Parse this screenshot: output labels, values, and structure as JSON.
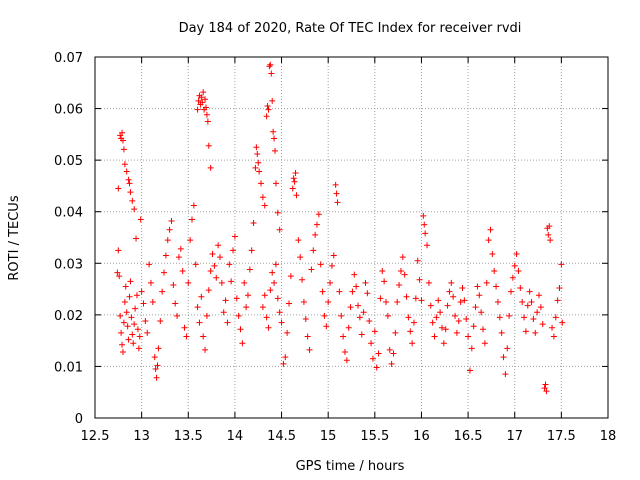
{
  "chart_data": {
    "type": "scatter",
    "title": "Day 184 of 2020, Rate Of TEC Index for receiver rvdi",
    "xlabel": "GPS time / hours",
    "ylabel": "ROTI / TECUs",
    "xlim": [
      12.5,
      18
    ],
    "ylim": [
      0,
      0.07
    ],
    "xticks": [
      "12.5",
      "13",
      "13.5",
      "14",
      "14.5",
      "15",
      "15.5",
      "16",
      "16.5",
      "17",
      "17.5",
      "18"
    ],
    "yticks": [
      "0",
      "0.01",
      "0.02",
      "0.03",
      "0.04",
      "0.05",
      "0.06",
      "0.07"
    ],
    "grid": true,
    "marker": "+",
    "color": "#ff0000",
    "series": [
      {
        "name": "ROTI",
        "points": [
          [
            12.75,
            0.0445
          ],
          [
            12.77,
            0.0548
          ],
          [
            12.78,
            0.0542
          ],
          [
            12.79,
            0.0553
          ],
          [
            12.8,
            0.0538
          ],
          [
            12.81,
            0.0521
          ],
          [
            12.82,
            0.0492
          ],
          [
            12.84,
            0.0478
          ],
          [
            12.86,
            0.0462
          ],
          [
            12.87,
            0.0455
          ],
          [
            12.88,
            0.0438
          ],
          [
            12.9,
            0.0421
          ],
          [
            12.92,
            0.0405
          ],
          [
            12.74,
            0.0282
          ],
          [
            12.75,
            0.0325
          ],
          [
            12.76,
            0.0275
          ],
          [
            12.77,
            0.0198
          ],
          [
            12.78,
            0.0165
          ],
          [
            12.79,
            0.0142
          ],
          [
            12.8,
            0.0128
          ],
          [
            12.81,
            0.0185
          ],
          [
            12.82,
            0.0225
          ],
          [
            12.83,
            0.0255
          ],
          [
            12.84,
            0.0205
          ],
          [
            12.85,
            0.0178
          ],
          [
            12.86,
            0.0152
          ],
          [
            12.87,
            0.0235
          ],
          [
            12.88,
            0.0265
          ],
          [
            12.89,
            0.0195
          ],
          [
            12.9,
            0.0162
          ],
          [
            12.91,
            0.0145
          ],
          [
            12.92,
            0.0182
          ],
          [
            12.93,
            0.0212
          ],
          [
            12.94,
            0.0348
          ],
          [
            12.95,
            0.0238
          ],
          [
            12.96,
            0.0172
          ],
          [
            12.97,
            0.0135
          ],
          [
            12.98,
            0.0158
          ],
          [
            12.99,
            0.0385
          ],
          [
            13.0,
            0.0245
          ],
          [
            13.02,
            0.0222
          ],
          [
            13.04,
            0.0188
          ],
          [
            13.06,
            0.0165
          ],
          [
            13.08,
            0.0298
          ],
          [
            13.1,
            0.0262
          ],
          [
            13.12,
            0.0225
          ],
          [
            13.14,
            0.0118
          ],
          [
            13.15,
            0.0095
          ],
          [
            13.16,
            0.0078
          ],
          [
            13.17,
            0.0102
          ],
          [
            13.18,
            0.0135
          ],
          [
            13.2,
            0.0188
          ],
          [
            13.22,
            0.0245
          ],
          [
            13.24,
            0.0282
          ],
          [
            13.26,
            0.0315
          ],
          [
            13.28,
            0.0345
          ],
          [
            13.3,
            0.0365
          ],
          [
            13.32,
            0.0382
          ],
          [
            13.34,
            0.0258
          ],
          [
            13.36,
            0.0222
          ],
          [
            13.38,
            0.0198
          ],
          [
            13.4,
            0.0312
          ],
          [
            13.42,
            0.0328
          ],
          [
            13.44,
            0.0285
          ],
          [
            13.46,
            0.0175
          ],
          [
            13.48,
            0.0158
          ],
          [
            13.5,
            0.0262
          ],
          [
            13.52,
            0.0345
          ],
          [
            13.54,
            0.0385
          ],
          [
            13.56,
            0.0412
          ],
          [
            13.58,
            0.0298
          ],
          [
            13.6,
            0.0598
          ],
          [
            13.61,
            0.0615
          ],
          [
            13.62,
            0.0625
          ],
          [
            13.63,
            0.0608
          ],
          [
            13.64,
            0.0622
          ],
          [
            13.65,
            0.0612
          ],
          [
            13.66,
            0.0632
          ],
          [
            13.67,
            0.0598
          ],
          [
            13.68,
            0.0618
          ],
          [
            13.69,
            0.0602
          ],
          [
            13.7,
            0.0588
          ],
          [
            13.71,
            0.0575
          ],
          [
            13.72,
            0.0528
          ],
          [
            13.74,
            0.0485
          ],
          [
            13.6,
            0.0215
          ],
          [
            13.62,
            0.0185
          ],
          [
            13.64,
            0.0235
          ],
          [
            13.66,
            0.0158
          ],
          [
            13.68,
            0.0132
          ],
          [
            13.7,
            0.0198
          ],
          [
            13.72,
            0.0248
          ],
          [
            13.74,
            0.0285
          ],
          [
            13.76,
            0.0318
          ],
          [
            13.78,
            0.0295
          ],
          [
            13.8,
            0.0272
          ],
          [
            13.82,
            0.0335
          ],
          [
            13.84,
            0.0312
          ],
          [
            13.86,
            0.0262
          ],
          [
            13.88,
            0.0205
          ],
          [
            13.9,
            0.0228
          ],
          [
            13.92,
            0.0185
          ],
          [
            13.94,
            0.0298
          ],
          [
            13.96,
            0.0265
          ],
          [
            13.98,
            0.0325
          ],
          [
            14.0,
            0.0352
          ],
          [
            14.02,
            0.0232
          ],
          [
            14.04,
            0.0198
          ],
          [
            14.06,
            0.0172
          ],
          [
            14.08,
            0.0145
          ],
          [
            14.1,
            0.0262
          ],
          [
            14.12,
            0.0215
          ],
          [
            14.14,
            0.0238
          ],
          [
            14.16,
            0.0288
          ],
          [
            14.18,
            0.0325
          ],
          [
            14.2,
            0.0378
          ],
          [
            14.22,
            0.0485
          ],
          [
            14.23,
            0.0525
          ],
          [
            14.24,
            0.0512
          ],
          [
            14.25,
            0.0495
          ],
          [
            14.26,
            0.0478
          ],
          [
            14.28,
            0.0455
          ],
          [
            14.3,
            0.0428
          ],
          [
            14.32,
            0.0412
          ],
          [
            14.34,
            0.0585
          ],
          [
            14.35,
            0.0605
          ],
          [
            14.36,
            0.0598
          ],
          [
            14.37,
            0.0682
          ],
          [
            14.38,
            0.0685
          ],
          [
            14.39,
            0.0668
          ],
          [
            14.4,
            0.0615
          ],
          [
            14.41,
            0.0555
          ],
          [
            14.42,
            0.0542
          ],
          [
            14.43,
            0.0518
          ],
          [
            14.44,
            0.0455
          ],
          [
            14.46,
            0.0398
          ],
          [
            14.48,
            0.0365
          ],
          [
            14.3,
            0.0215
          ],
          [
            14.32,
            0.0238
          ],
          [
            14.34,
            0.0195
          ],
          [
            14.36,
            0.0175
          ],
          [
            14.38,
            0.0248
          ],
          [
            14.4,
            0.0282
          ],
          [
            14.42,
            0.0262
          ],
          [
            14.44,
            0.0298
          ],
          [
            14.46,
            0.0232
          ],
          [
            14.48,
            0.0205
          ],
          [
            14.5,
            0.0185
          ],
          [
            14.52,
            0.0105
          ],
          [
            14.54,
            0.0118
          ],
          [
            14.56,
            0.0165
          ],
          [
            14.58,
            0.0222
          ],
          [
            14.6,
            0.0275
          ],
          [
            14.62,
            0.0445
          ],
          [
            14.63,
            0.0465
          ],
          [
            14.64,
            0.0458
          ],
          [
            14.65,
            0.0475
          ],
          [
            14.66,
            0.0432
          ],
          [
            14.68,
            0.0345
          ],
          [
            14.7,
            0.0312
          ],
          [
            14.72,
            0.0268
          ],
          [
            14.74,
            0.0225
          ],
          [
            14.76,
            0.0192
          ],
          [
            14.78,
            0.0158
          ],
          [
            14.8,
            0.0132
          ],
          [
            14.82,
            0.0288
          ],
          [
            14.84,
            0.0325
          ],
          [
            14.86,
            0.0355
          ],
          [
            14.88,
            0.0375
          ],
          [
            14.9,
            0.0395
          ],
          [
            14.92,
            0.0298
          ],
          [
            14.94,
            0.0245
          ],
          [
            14.96,
            0.0198
          ],
          [
            14.98,
            0.0178
          ],
          [
            15.0,
            0.0225
          ],
          [
            15.02,
            0.0262
          ],
          [
            15.04,
            0.0295
          ],
          [
            15.06,
            0.0315
          ],
          [
            15.08,
            0.0452
          ],
          [
            15.09,
            0.0435
          ],
          [
            15.1,
            0.0418
          ],
          [
            15.12,
            0.0245
          ],
          [
            15.14,
            0.0198
          ],
          [
            15.16,
            0.0158
          ],
          [
            15.18,
            0.0128
          ],
          [
            15.2,
            0.0112
          ],
          [
            15.22,
            0.0175
          ],
          [
            15.24,
            0.0215
          ],
          [
            15.26,
            0.0245
          ],
          [
            15.28,
            0.0278
          ],
          [
            15.3,
            0.0255
          ],
          [
            15.32,
            0.0218
          ],
          [
            15.34,
            0.0195
          ],
          [
            15.36,
            0.0162
          ],
          [
            15.38,
            0.0205
          ],
          [
            15.4,
            0.0262
          ],
          [
            15.42,
            0.0242
          ],
          [
            15.44,
            0.0188
          ],
          [
            15.46,
            0.0145
          ],
          [
            15.48,
            0.0115
          ],
          [
            15.5,
            0.0168
          ],
          [
            15.52,
            0.0098
          ],
          [
            15.54,
            0.0125
          ],
          [
            15.56,
            0.0232
          ],
          [
            15.58,
            0.0285
          ],
          [
            15.6,
            0.0265
          ],
          [
            15.62,
            0.0225
          ],
          [
            15.64,
            0.0198
          ],
          [
            15.66,
            0.0132
          ],
          [
            15.68,
            0.0105
          ],
          [
            15.7,
            0.0125
          ],
          [
            15.72,
            0.0165
          ],
          [
            15.74,
            0.0225
          ],
          [
            15.76,
            0.0258
          ],
          [
            15.78,
            0.0285
          ],
          [
            15.8,
            0.0312
          ],
          [
            15.82,
            0.0278
          ],
          [
            15.84,
            0.0235
          ],
          [
            15.86,
            0.0195
          ],
          [
            15.88,
            0.0168
          ],
          [
            15.9,
            0.0145
          ],
          [
            15.92,
            0.0185
          ],
          [
            15.94,
            0.0232
          ],
          [
            15.96,
            0.0305
          ],
          [
            15.98,
            0.0268
          ],
          [
            16.0,
            0.0228
          ],
          [
            16.02,
            0.0392
          ],
          [
            16.03,
            0.0375
          ],
          [
            16.04,
            0.0358
          ],
          [
            16.06,
            0.0335
          ],
          [
            16.08,
            0.0262
          ],
          [
            16.1,
            0.0218
          ],
          [
            16.12,
            0.0185
          ],
          [
            16.14,
            0.0158
          ],
          [
            16.16,
            0.0195
          ],
          [
            16.18,
            0.0228
          ],
          [
            16.2,
            0.0205
          ],
          [
            16.22,
            0.0175
          ],
          [
            16.24,
            0.0145
          ],
          [
            16.26,
            0.0172
          ],
          [
            16.28,
            0.0218
          ],
          [
            16.3,
            0.0245
          ],
          [
            16.32,
            0.0262
          ],
          [
            16.34,
            0.0235
          ],
          [
            16.36,
            0.0198
          ],
          [
            16.38,
            0.0165
          ],
          [
            16.4,
            0.0188
          ],
          [
            16.42,
            0.0225
          ],
          [
            16.44,
            0.0252
          ],
          [
            16.46,
            0.0228
          ],
          [
            16.48,
            0.0192
          ],
          [
            16.5,
            0.0158
          ],
          [
            16.52,
            0.0092
          ],
          [
            16.54,
            0.0135
          ],
          [
            16.56,
            0.0178
          ],
          [
            16.58,
            0.0215
          ],
          [
            16.6,
            0.0255
          ],
          [
            16.62,
            0.0238
          ],
          [
            16.64,
            0.0205
          ],
          [
            16.66,
            0.0172
          ],
          [
            16.68,
            0.0145
          ],
          [
            16.7,
            0.0262
          ],
          [
            16.72,
            0.0345
          ],
          [
            16.74,
            0.0365
          ],
          [
            16.76,
            0.0318
          ],
          [
            16.78,
            0.0285
          ],
          [
            16.8,
            0.0255
          ],
          [
            16.82,
            0.0225
          ],
          [
            16.84,
            0.0195
          ],
          [
            16.86,
            0.0165
          ],
          [
            16.88,
            0.0118
          ],
          [
            16.9,
            0.0085
          ],
          [
            16.92,
            0.0135
          ],
          [
            16.94,
            0.0198
          ],
          [
            16.96,
            0.0245
          ],
          [
            16.98,
            0.0272
          ],
          [
            17.0,
            0.0295
          ],
          [
            17.02,
            0.0318
          ],
          [
            17.04,
            0.0285
          ],
          [
            17.06,
            0.0252
          ],
          [
            17.08,
            0.0225
          ],
          [
            17.1,
            0.0195
          ],
          [
            17.12,
            0.0168
          ],
          [
            17.14,
            0.0218
          ],
          [
            17.16,
            0.0245
          ],
          [
            17.18,
            0.0225
          ],
          [
            17.2,
            0.0192
          ],
          [
            17.22,
            0.0165
          ],
          [
            17.24,
            0.0205
          ],
          [
            17.26,
            0.0238
          ],
          [
            17.28,
            0.0215
          ],
          [
            17.3,
            0.0182
          ],
          [
            17.32,
            0.0058
          ],
          [
            17.33,
            0.0065
          ],
          [
            17.34,
            0.0052
          ],
          [
            17.35,
            0.0368
          ],
          [
            17.36,
            0.0355
          ],
          [
            17.37,
            0.0372
          ],
          [
            17.38,
            0.0345
          ],
          [
            17.4,
            0.0175
          ],
          [
            17.42,
            0.0158
          ],
          [
            17.44,
            0.0195
          ],
          [
            17.46,
            0.0228
          ],
          [
            17.48,
            0.0252
          ],
          [
            17.5,
            0.0298
          ],
          [
            17.51,
            0.0185
          ]
        ]
      }
    ]
  }
}
